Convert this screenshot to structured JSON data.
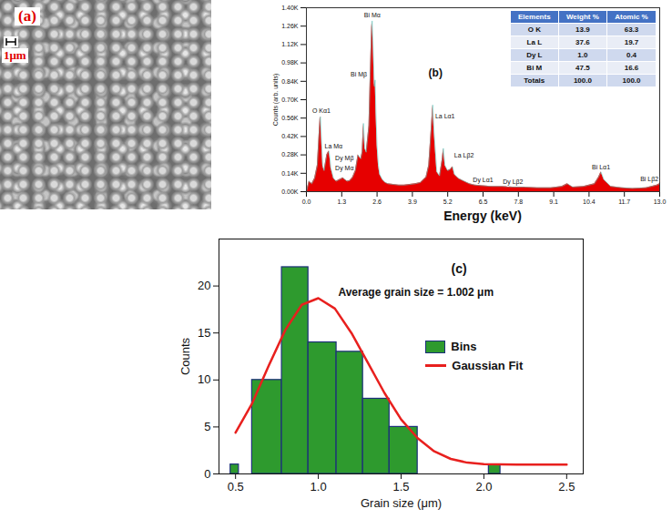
{
  "chart_data": [
    {
      "type": "image",
      "panel_label": "(a)",
      "scale_bar_label": "1μm"
    },
    {
      "type": "area",
      "panel_label": "(b)",
      "x_label": "Energy (keV)",
      "y_label": "Counts (arb. units)",
      "color": "#e60000",
      "xlim": [
        0,
        13
      ],
      "ylim": [
        0,
        1400
      ],
      "xticks": [
        {
          "value": 0,
          "label": "0.0"
        },
        1.3,
        2.6,
        3.9,
        5.2,
        6.5,
        7.8,
        9.1,
        10.4,
        11.7,
        {
          "value": 13,
          "label": "13.0"
        }
      ],
      "yticks": [
        {
          "value": 0,
          "label": "0.00K"
        },
        {
          "value": 140,
          "label": "0.14K"
        },
        {
          "value": 280,
          "label": "0.28K"
        },
        {
          "value": 420,
          "label": "0.42K"
        },
        {
          "value": 560,
          "label": "0.56K"
        },
        {
          "value": 700,
          "label": "0.70K"
        },
        {
          "value": 840,
          "label": "0.84K"
        },
        {
          "value": 980,
          "label": "0.98K"
        },
        {
          "value": 1120,
          "label": "1.12K"
        },
        {
          "value": 1260,
          "label": "1.26K"
        },
        {
          "value": 1400,
          "label": "1.40K"
        }
      ],
      "x": [
        0.0,
        0.1,
        0.2,
        0.3,
        0.4,
        0.45,
        0.5,
        0.52,
        0.55,
        0.6,
        0.65,
        0.7,
        0.75,
        0.8,
        0.83,
        0.87,
        0.9,
        1.0,
        1.1,
        1.2,
        1.3,
        1.35,
        1.4,
        1.5,
        1.6,
        1.7,
        1.8,
        1.9,
        2.0,
        2.05,
        2.1,
        2.15,
        2.2,
        2.3,
        2.35,
        2.4,
        2.42,
        2.45,
        2.5,
        2.53,
        2.56,
        2.6,
        2.65,
        2.7,
        2.8,
        2.9,
        3.0,
        3.2,
        3.4,
        3.6,
        3.8,
        4.0,
        4.2,
        4.4,
        4.5,
        4.6,
        4.65,
        4.7,
        4.8,
        4.9,
        5.0,
        5.04,
        5.1,
        5.2,
        5.3,
        5.38,
        5.45,
        5.6,
        5.8,
        6.0,
        6.2,
        6.5,
        6.8,
        7.2,
        7.6,
        8.0,
        8.5,
        9.0,
        9.4,
        9.6,
        9.8,
        10.2,
        10.6,
        10.75,
        10.84,
        10.95,
        11.2,
        11.6,
        12.0,
        12.5,
        12.9,
        13.0
      ],
      "values": [
        0,
        80,
        60,
        100,
        200,
        380,
        560,
        570,
        420,
        200,
        160,
        220,
        280,
        300,
        310,
        250,
        180,
        100,
        80,
        90,
        100,
        105,
        95,
        80,
        85,
        110,
        160,
        280,
        250,
        300,
        520,
        330,
        300,
        500,
        900,
        1250,
        1300,
        1150,
        800,
        850,
        600,
        350,
        200,
        130,
        90,
        70,
        60,
        55,
        50,
        50,
        55,
        60,
        70,
        110,
        200,
        500,
        660,
        450,
        150,
        120,
        250,
        330,
        200,
        160,
        170,
        190,
        130,
        100,
        80,
        60,
        50,
        45,
        40,
        40,
        35,
        35,
        30,
        30,
        40,
        60,
        35,
        40,
        60,
        110,
        150,
        90,
        40,
        30,
        25,
        30,
        50,
        60
      ],
      "annotations": [
        {
          "text": "O Kα1",
          "x": 0.55,
          "y": 600
        },
        {
          "text": "La Mα",
          "x": 1.0,
          "y": 330
        },
        {
          "text": "Dy Mβ",
          "x": 1.4,
          "y": 240
        },
        {
          "text": "Dy Mα",
          "x": 1.4,
          "y": 160
        },
        {
          "text": "Bi Mα",
          "x": 2.42,
          "y": 1330
        },
        {
          "text": "Bi Mβ",
          "x": 1.93,
          "y": 880
        },
        {
          "text": "La Lα1",
          "x": 5.1,
          "y": 560
        },
        {
          "text": "La Lβ2",
          "x": 5.8,
          "y": 260
        },
        {
          "text": "Dy Lα1",
          "x": 6.5,
          "y": 70
        },
        {
          "text": "Dy Lβ2",
          "x": 7.6,
          "y": 60
        },
        {
          "text": "Bi Lα1",
          "x": 10.84,
          "y": 170
        },
        {
          "text": "Bi Lβ2",
          "x": 12.62,
          "y": 80
        }
      ],
      "table": {
        "columns": [
          "Elements",
          "Weight %",
          "Atomic %"
        ],
        "rows": [
          [
            "O  K",
            "13.9",
            "63.3"
          ],
          [
            "La L",
            "37.6",
            "19.7"
          ],
          [
            "Dy L",
            "1.0",
            "0.4"
          ],
          [
            "Bi M",
            "47.5",
            "16.6"
          ],
          [
            "Totals",
            "100.0",
            "100.0"
          ]
        ]
      }
    },
    {
      "type": "histogram",
      "panel_label": "(c)",
      "x_label": "Grain size (μm)",
      "y_label": "Counts",
      "xlim": [
        0.4,
        2.6
      ],
      "ylim": [
        0,
        25
      ],
      "xticks": [
        0.5,
        {
          "value": 1,
          "label": "1.0"
        },
        1.5,
        {
          "value": 2,
          "label": "2.0"
        },
        2.5
      ],
      "yticks": [
        0,
        5,
        10,
        15,
        20
      ],
      "legend": "upper right",
      "bins": [
        0.47,
        0.52,
        0.6,
        0.78,
        0.94,
        1.11,
        1.27,
        1.43,
        1.6,
        2.03,
        2.1
      ],
      "series": [
        {
          "name": "Bins",
          "type": "bar",
          "color": "#2e9a2e",
          "values": [
            1,
            0,
            10,
            22,
            14,
            13,
            8,
            5,
            0,
            1
          ]
        },
        {
          "name": "Gaussian Fit",
          "type": "line",
          "color": "#e8201e",
          "x": [
            0.5,
            0.6,
            0.7,
            0.8,
            0.9,
            1.0,
            1.1,
            1.2,
            1.3,
            1.4,
            1.5,
            1.6,
            1.7,
            1.8,
            1.9,
            2.0,
            2.2,
            2.5
          ],
          "values": [
            4.4,
            7.5,
            11.5,
            15.3,
            18.0,
            18.7,
            17.6,
            15.0,
            11.8,
            8.6,
            5.8,
            3.8,
            2.4,
            1.6,
            1.2,
            1.05,
            1.0,
            1.0
          ]
        }
      ],
      "annotations": [
        {
          "text": "Average grain size = 1.002 μm",
          "x": 1.12,
          "y": 19.3
        }
      ]
    }
  ]
}
